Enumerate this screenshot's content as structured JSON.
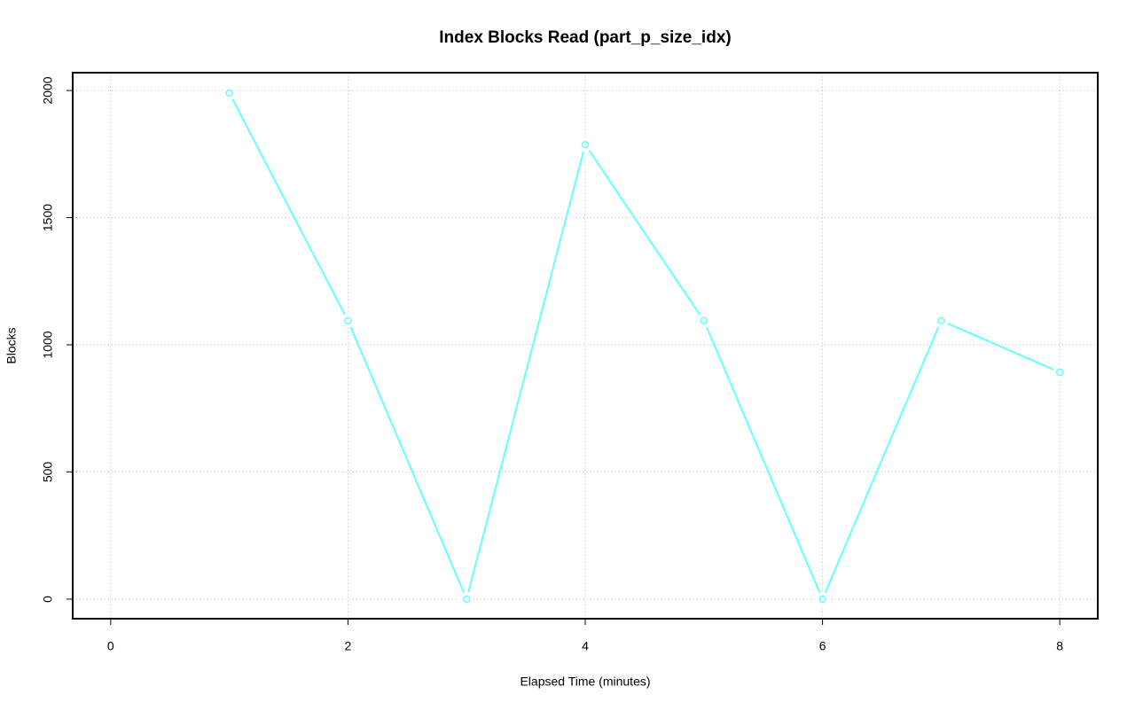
{
  "chart_data": {
    "type": "line",
    "title": "Index Blocks Read (part_p_size_idx)",
    "x_label": "Elapsed Time (minutes)",
    "y_label": "Blocks",
    "x": [
      1,
      2,
      3,
      4,
      5,
      6,
      7,
      8
    ],
    "series": [
      {
        "color": "#66ffff",
        "values": [
          1990,
          1095,
          0,
          1787,
          1095,
          0,
          1095,
          892
        ]
      }
    ],
    "xlim": [
      -0.32,
      8.32
    ],
    "xticks": [
      0,
      2,
      4,
      6,
      8
    ],
    "ylim": [
      -77,
      2070
    ],
    "yticks": [
      0,
      500,
      1000,
      1500,
      2000
    ],
    "grid": true
  }
}
